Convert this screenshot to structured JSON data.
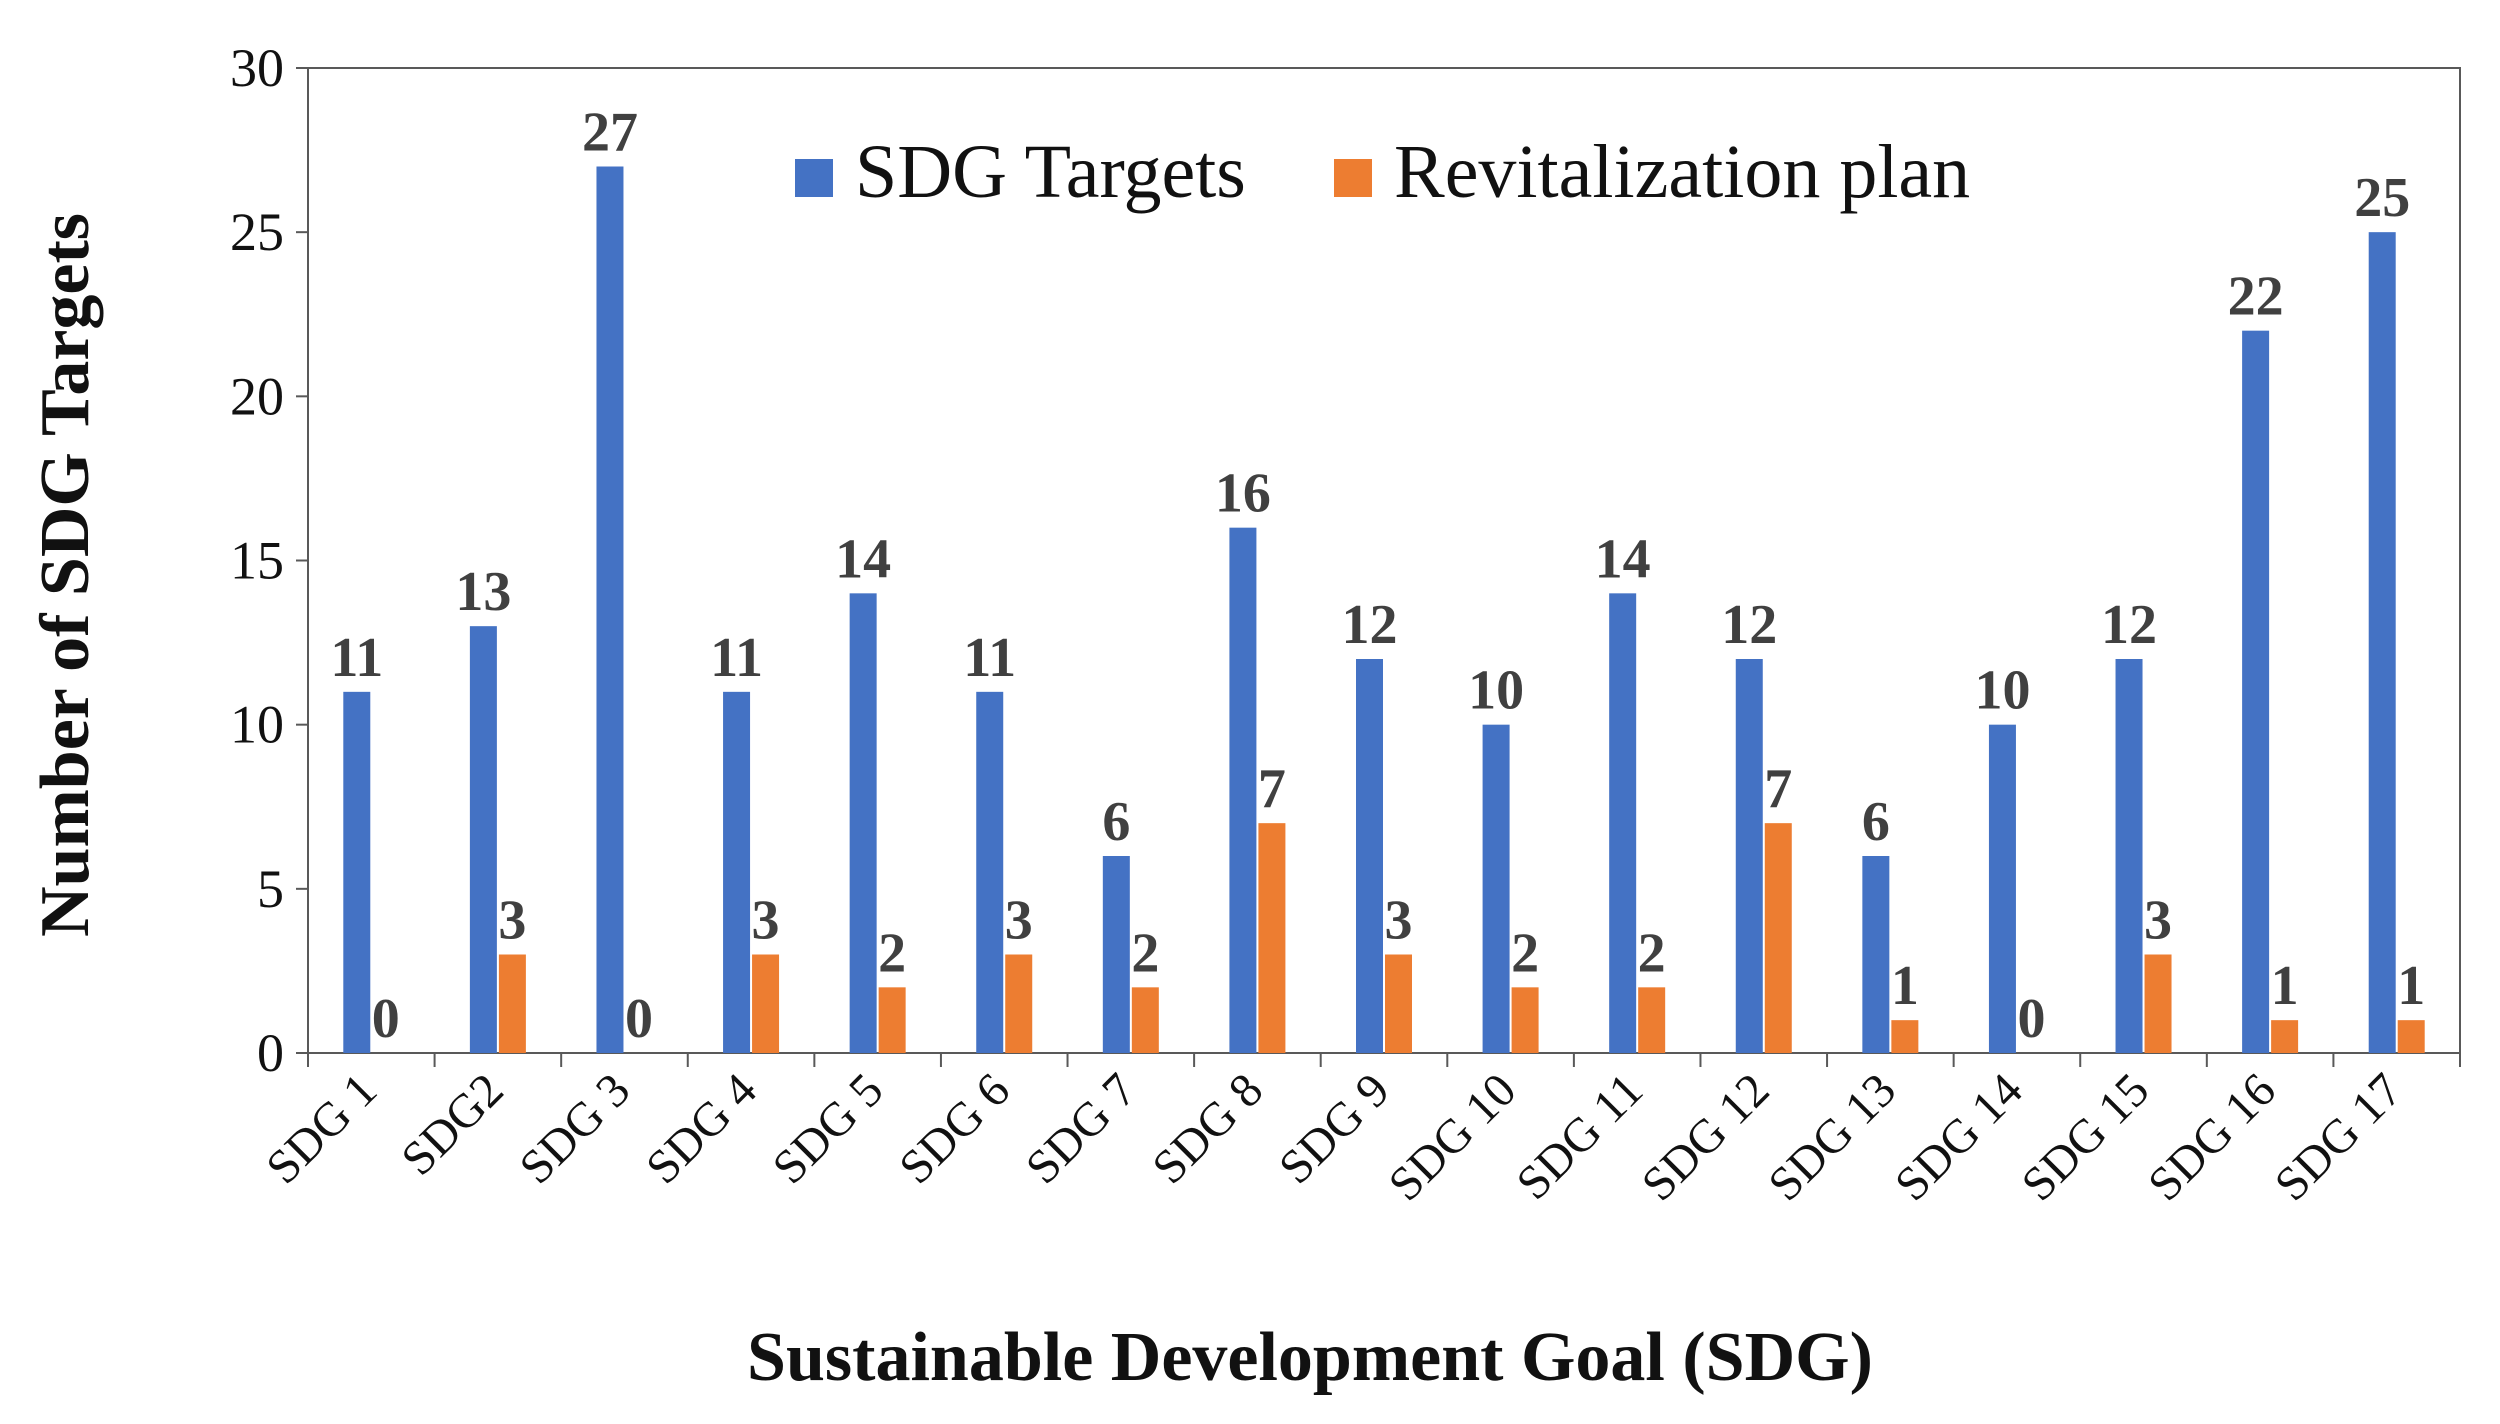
{
  "chart_data": {
    "type": "bar",
    "title": "",
    "xlabel": "Sustainable Development Goal (SDG)",
    "ylabel": "Number of SDG Targets",
    "ylim": [
      0,
      30
    ],
    "yticks": [
      0,
      5,
      10,
      15,
      20,
      25,
      30
    ],
    "grid": false,
    "legend_position": "top-center",
    "categories": [
      "SDG 1",
      "SDG2",
      "SDG 3",
      "SDG 4",
      "SDG 5",
      "SDG 6",
      "SDG 7",
      "SDG 8",
      "SDG 9",
      "SDG 10",
      "SDG 11",
      "SDG 12",
      "SDG 13",
      "SDG 14",
      "SDG 15",
      "SDG 16",
      "SDG 17"
    ],
    "series": [
      {
        "name": "SDG Targets",
        "color": "#4472C4",
        "values": [
          11,
          13,
          27,
          11,
          14,
          11,
          6,
          16,
          12,
          10,
          14,
          12,
          6,
          10,
          12,
          22,
          25
        ]
      },
      {
        "name": "Revitalization plan",
        "color": "#ED7D31",
        "values": [
          0,
          3,
          0,
          3,
          2,
          3,
          2,
          7,
          3,
          2,
          2,
          7,
          1,
          0,
          3,
          1,
          1
        ]
      }
    ]
  }
}
